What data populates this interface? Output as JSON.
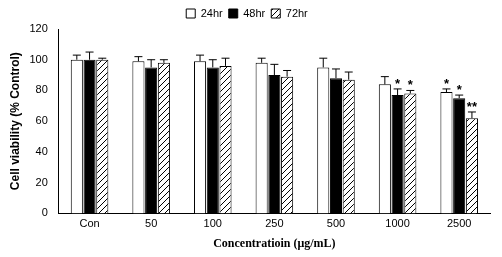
{
  "chart_data": {
    "type": "bar",
    "x_label": "Concentratioin (μg/mL)",
    "y_label": "Cell viability (% Control)",
    "categories": [
      "Con",
      "50",
      "100",
      "250",
      "500",
      "1000",
      "2500"
    ],
    "series": [
      {
        "name": "24hr",
        "color": "#ffffff",
        "values": [
          100,
          99,
          99,
          98,
          95,
          84,
          79
        ],
        "errors": [
          3,
          3,
          4,
          3,
          6,
          5,
          2
        ],
        "significance": [
          null,
          null,
          null,
          null,
          null,
          null,
          "*"
        ]
      },
      {
        "name": "48hr",
        "color": "#000000",
        "values": [
          100,
          95,
          95,
          90,
          88,
          77,
          75
        ],
        "errors": [
          5,
          5,
          5,
          7,
          6,
          4,
          2
        ],
        "significance": [
          null,
          null,
          null,
          null,
          null,
          "*",
          "*"
        ]
      },
      {
        "name": "72hr",
        "color": "#ffffff",
        "line_style": "hatched",
        "values": [
          100,
          98,
          96,
          89,
          87,
          78,
          62
        ],
        "errors": [
          1,
          2,
          5,
          4,
          5,
          2,
          4
        ],
        "significance": [
          null,
          null,
          null,
          null,
          null,
          "*",
          "**"
        ]
      }
    ],
    "ylim": [
      0,
      120
    ],
    "yticks": [
      0,
      20,
      40,
      60,
      80,
      100,
      120
    ],
    "grid": false,
    "legend": "top"
  }
}
